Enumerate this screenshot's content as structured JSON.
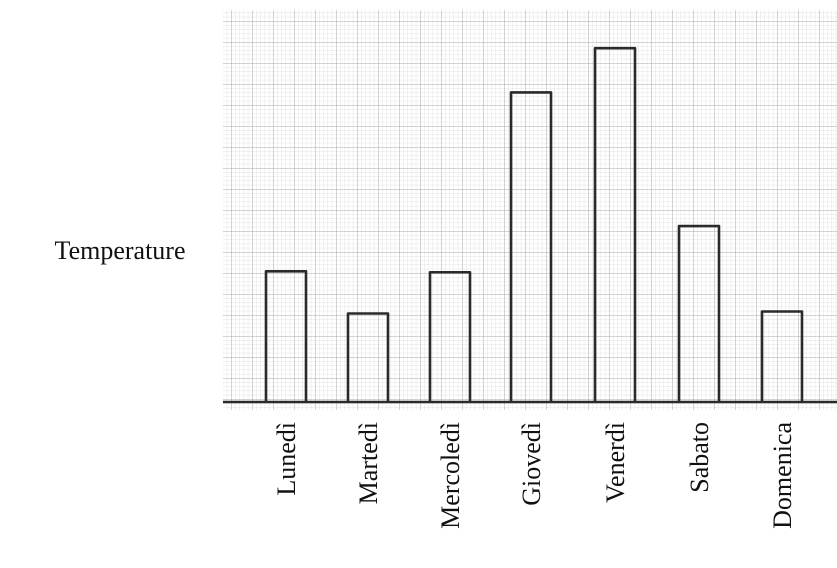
{
  "chart_data": {
    "type": "bar",
    "ylabel": "Temperature",
    "xlabel": "",
    "categories": [
      "Lunedì",
      "Martedì",
      "Mercoledì",
      "Giovedì",
      "Venerdì",
      "Sabato",
      "Domenica"
    ],
    "values": [
      130,
      88,
      129,
      308,
      352,
      175,
      90
    ],
    "ylim": [
      0,
      390
    ],
    "grid": true,
    "bar_style": "hand-drawn outline on graph paper",
    "colors": {
      "grid_minor": "#d9d9d9",
      "grid_major": "#a8a8a8",
      "bar_outline": "#2a2a2a"
    }
  }
}
